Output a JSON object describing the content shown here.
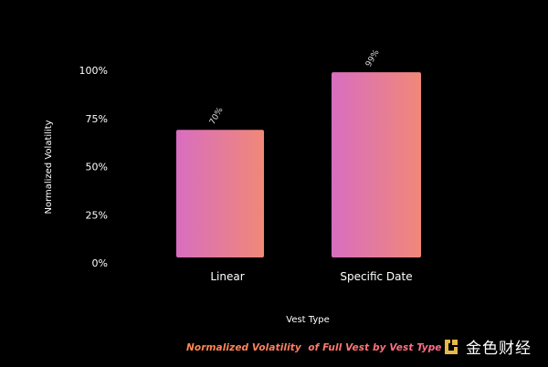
{
  "chart_data": {
    "type": "bar",
    "categories": [
      "Linear",
      "Specific Date"
    ],
    "values": [
      70,
      99
    ],
    "data_labels": [
      "70%",
      "99%"
    ],
    "title": "Normalized Volatility  of Full Vest by Vest Type",
    "xlabel": "Vest Type",
    "ylabel": "Normalized Volatility",
    "ylim": [
      0,
      100
    ],
    "yticks": [
      0,
      25,
      50,
      75,
      100
    ],
    "ytick_labels": [
      "0%",
      "25%",
      "50%",
      "75%",
      "100%"
    ],
    "grid": false,
    "bar_gradient": [
      "#d86ec0",
      "#f08878"
    ]
  },
  "caption": {
    "text": "Normalized Volatility  of Full Vest by Vest Type",
    "gradient": [
      "#ff8a4c",
      "#ff6a8a"
    ]
  },
  "brand": {
    "name": "金色财经",
    "logo_icon": "jinse-logo-icon",
    "logo_color": "#e8b84a"
  }
}
